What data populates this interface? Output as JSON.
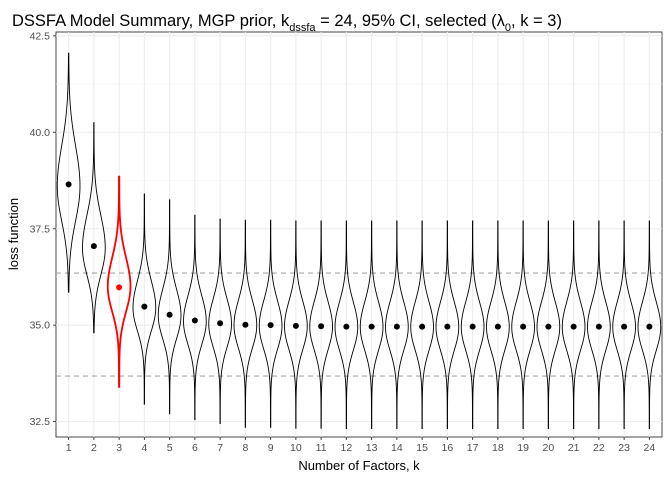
{
  "chart_data": {
    "type": "violin",
    "title_parts": {
      "before_k": "DSSFA Model Summary, MGP prior, k",
      "k_subscript": "dssfa",
      "middle": " = 24, 95% CI, selected (",
      "lambda": "λ",
      "lambda_subscript": "0",
      "end": ", k = 3)"
    },
    "xlabel": "Number of Factors, k",
    "ylabel": "loss function",
    "ylim": [
      32.1,
      42.6
    ],
    "y_ticks": [
      32.5,
      35.0,
      37.5,
      40.0,
      42.5
    ],
    "y_tick_labels": [
      "32.5",
      "35.0",
      "37.5",
      "40.0",
      "42.5"
    ],
    "categories": [
      "1",
      "2",
      "3",
      "4",
      "5",
      "6",
      "7",
      "8",
      "9",
      "10",
      "11",
      "12",
      "13",
      "14",
      "15",
      "16",
      "17",
      "18",
      "19",
      "20",
      "21",
      "22",
      "23",
      "24"
    ],
    "selected_k": 3,
    "selected_color": "#ff0000",
    "default_color": "#000000",
    "reference_lines": [
      36.35,
      33.68
    ],
    "reference_line_color": "#a6a6a6",
    "grid": true,
    "series": [
      {
        "k": 1,
        "mean": 38.65,
        "min": 35.85,
        "max": 42.05,
        "mode": 38.6,
        "spread_low": 0.9,
        "spread_high": 1.05,
        "width": 0.45
      },
      {
        "k": 2,
        "mean": 37.05,
        "min": 34.8,
        "max": 40.25,
        "mode": 37.0,
        "spread_low": 0.7,
        "spread_high": 0.85,
        "width": 0.45
      },
      {
        "k": 3,
        "mean": 35.98,
        "min": 33.4,
        "max": 38.85,
        "mode": 36.0,
        "spread_low": 0.65,
        "spread_high": 0.75,
        "width": 0.45
      },
      {
        "k": 4,
        "mean": 35.48,
        "min": 32.95,
        "max": 38.4,
        "mode": 35.45,
        "spread_low": 0.6,
        "spread_high": 0.7,
        "width": 0.45
      },
      {
        "k": 5,
        "mean": 35.27,
        "min": 32.7,
        "max": 38.25,
        "mode": 35.25,
        "spread_low": 0.6,
        "spread_high": 0.68,
        "width": 0.45
      },
      {
        "k": 6,
        "mean": 35.12,
        "min": 32.55,
        "max": 37.85,
        "mode": 35.1,
        "spread_low": 0.6,
        "spread_high": 0.66,
        "width": 0.45
      },
      {
        "k": 7,
        "mean": 35.05,
        "min": 32.45,
        "max": 37.75,
        "mode": 35.03,
        "spread_low": 0.6,
        "spread_high": 0.65,
        "width": 0.45
      },
      {
        "k": 8,
        "mean": 35.01,
        "min": 32.35,
        "max": 37.72,
        "mode": 35.0,
        "spread_low": 0.6,
        "spread_high": 0.65,
        "width": 0.45
      },
      {
        "k": 9,
        "mean": 35.0,
        "min": 32.35,
        "max": 37.72,
        "mode": 34.98,
        "spread_low": 0.6,
        "spread_high": 0.65,
        "width": 0.45
      },
      {
        "k": 10,
        "mean": 34.98,
        "min": 32.33,
        "max": 37.7,
        "mode": 34.97,
        "spread_low": 0.6,
        "spread_high": 0.65,
        "width": 0.45
      },
      {
        "k": 11,
        "mean": 34.97,
        "min": 32.33,
        "max": 37.7,
        "mode": 34.96,
        "spread_low": 0.6,
        "spread_high": 0.65,
        "width": 0.45
      },
      {
        "k": 12,
        "mean": 34.96,
        "min": 32.32,
        "max": 37.7,
        "mode": 34.95,
        "spread_low": 0.6,
        "spread_high": 0.65,
        "width": 0.45
      },
      {
        "k": 13,
        "mean": 34.96,
        "min": 32.32,
        "max": 37.7,
        "mode": 34.95,
        "spread_low": 0.6,
        "spread_high": 0.65,
        "width": 0.45
      },
      {
        "k": 14,
        "mean": 34.96,
        "min": 32.32,
        "max": 37.7,
        "mode": 34.95,
        "spread_low": 0.6,
        "spread_high": 0.65,
        "width": 0.45
      },
      {
        "k": 15,
        "mean": 34.96,
        "min": 32.32,
        "max": 37.7,
        "mode": 34.95,
        "spread_low": 0.6,
        "spread_high": 0.65,
        "width": 0.45
      },
      {
        "k": 16,
        "mean": 34.96,
        "min": 32.32,
        "max": 37.7,
        "mode": 34.95,
        "spread_low": 0.6,
        "spread_high": 0.65,
        "width": 0.45
      },
      {
        "k": 17,
        "mean": 34.96,
        "min": 32.32,
        "max": 37.7,
        "mode": 34.95,
        "spread_low": 0.6,
        "spread_high": 0.65,
        "width": 0.45
      },
      {
        "k": 18,
        "mean": 34.96,
        "min": 32.32,
        "max": 37.7,
        "mode": 34.95,
        "spread_low": 0.6,
        "spread_high": 0.65,
        "width": 0.45
      },
      {
        "k": 19,
        "mean": 34.96,
        "min": 32.32,
        "max": 37.7,
        "mode": 34.95,
        "spread_low": 0.6,
        "spread_high": 0.65,
        "width": 0.45
      },
      {
        "k": 20,
        "mean": 34.96,
        "min": 32.32,
        "max": 37.7,
        "mode": 34.95,
        "spread_low": 0.6,
        "spread_high": 0.65,
        "width": 0.45
      },
      {
        "k": 21,
        "mean": 34.96,
        "min": 32.32,
        "max": 37.7,
        "mode": 34.95,
        "spread_low": 0.6,
        "spread_high": 0.65,
        "width": 0.45
      },
      {
        "k": 22,
        "mean": 34.96,
        "min": 32.32,
        "max": 37.7,
        "mode": 34.95,
        "spread_low": 0.6,
        "spread_high": 0.65,
        "width": 0.45
      },
      {
        "k": 23,
        "mean": 34.96,
        "min": 32.32,
        "max": 37.7,
        "mode": 34.95,
        "spread_low": 0.6,
        "spread_high": 0.65,
        "width": 0.45
      },
      {
        "k": 24,
        "mean": 34.96,
        "min": 32.32,
        "max": 37.7,
        "mode": 34.95,
        "spread_low": 0.6,
        "spread_high": 0.65,
        "width": 0.45
      }
    ]
  }
}
